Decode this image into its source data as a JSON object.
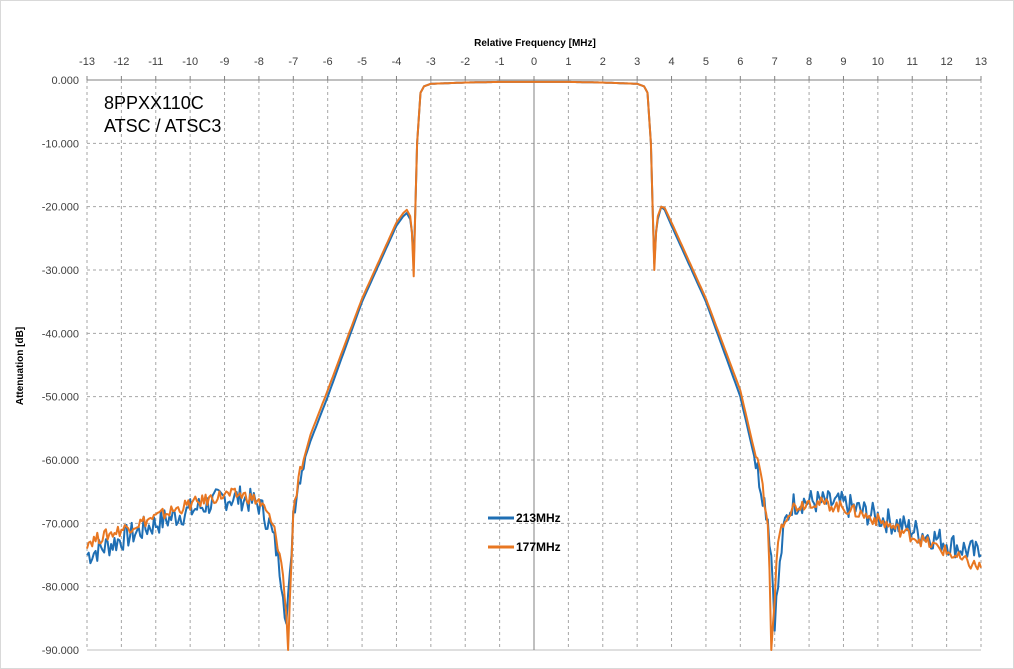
{
  "chart_data": {
    "type": "line",
    "title": "",
    "xlabel": "Relative Frequency [MHz]",
    "ylabel": "Attenuation [dB]",
    "xlim": [
      -13,
      13
    ],
    "ylim": [
      -90,
      0
    ],
    "x_ticks": [
      "-13",
      "-12",
      "-11",
      "-10",
      "-9",
      "-8",
      "-7",
      "-6",
      "-5",
      "-4",
      "-3",
      "-2",
      "-1",
      "0",
      "1",
      "2",
      "3",
      "4",
      "5",
      "6",
      "7",
      "8",
      "9",
      "10",
      "11",
      "12",
      "13"
    ],
    "y_ticks": [
      "0.000",
      "-10.000",
      "-20.000",
      "-30.000",
      "-40.000",
      "-50.000",
      "-60.000",
      "-70.000",
      "-80.000",
      "-90.000"
    ],
    "x_axis_position": "top",
    "grid": true,
    "legend_position": "center-bottom",
    "annotations": [
      "8PPXX110C",
      "ATSC / ATSC3"
    ],
    "series": [
      {
        "name": "213MHz",
        "color": "#1f6fb4",
        "x": [
          -13,
          -12,
          -11,
          -10,
          -9,
          -8.5,
          -8,
          -7.7,
          -7.5,
          -7.3,
          -7.2,
          -7.1,
          -7,
          -6.8,
          -6.5,
          -6,
          -5,
          -4,
          -3.8,
          -3.7,
          -3.6,
          -3.55,
          -3.5,
          -3.45,
          -3.4,
          -3.3,
          -3.2,
          -3,
          -2,
          -1,
          0,
          1,
          2,
          3,
          3.2,
          3.3,
          3.4,
          3.45,
          3.5,
          3.55,
          3.6,
          3.7,
          3.8,
          4,
          5,
          6,
          6.3,
          6.6,
          6.8,
          6.9,
          7,
          7.1,
          7.2,
          7.3,
          7.5,
          7.8,
          8,
          9,
          10,
          11,
          12,
          12.5,
          13
        ],
        "y": [
          -75,
          -72.5,
          -70,
          -68,
          -66,
          -66,
          -67,
          -70,
          -74,
          -80,
          -86,
          -79,
          -68,
          -62,
          -57,
          -50,
          -35,
          -23,
          -21.5,
          -21,
          -22,
          -24,
          -29,
          -20,
          -10,
          -2,
          -1,
          -0.6,
          -0.4,
          -0.3,
          -0.3,
          -0.3,
          -0.4,
          -0.6,
          -1,
          -2,
          -10,
          -20,
          -29,
          -24,
          -22,
          -20,
          -20.5,
          -23,
          -35,
          -50,
          -57,
          -64,
          -69,
          -75,
          -85,
          -80,
          -74,
          -70,
          -67,
          -66.5,
          -66.5,
          -67,
          -69,
          -71,
          -73,
          -74,
          -75
        ]
      },
      {
        "name": "177MHz",
        "color": "#e87722",
        "x": [
          -13,
          -12,
          -11,
          -10,
          -9,
          -8.5,
          -8,
          -7.7,
          -7.5,
          -7.3,
          -7.2,
          -7.15,
          -7.1,
          -7,
          -6.8,
          -6.5,
          -6,
          -5,
          -4,
          -3.8,
          -3.7,
          -3.6,
          -3.55,
          -3.5,
          -3.45,
          -3.4,
          -3.3,
          -3.2,
          -3,
          -2,
          -1,
          0,
          1,
          2,
          3,
          3.2,
          3.3,
          3.4,
          3.45,
          3.5,
          3.55,
          3.6,
          3.7,
          3.8,
          4,
          5,
          6,
          6.3,
          6.6,
          6.8,
          6.85,
          6.9,
          7,
          7.1,
          7.3,
          7.5,
          7.8,
          8,
          9,
          10,
          11,
          12,
          12.5,
          13
        ],
        "y": [
          -73,
          -71,
          -69,
          -67,
          -65.5,
          -65.5,
          -66.5,
          -69,
          -72,
          -78,
          -85,
          -90,
          -82,
          -68,
          -62,
          -56,
          -49,
          -34.5,
          -22.5,
          -21,
          -20.5,
          -21.5,
          -24,
          -31,
          -20,
          -10,
          -2,
          -1,
          -0.6,
          -0.4,
          -0.3,
          -0.3,
          -0.3,
          -0.4,
          -0.6,
          -1,
          -2,
          -10,
          -20,
          -30,
          -24,
          -21.5,
          -20,
          -20.2,
          -22.5,
          -34.5,
          -49,
          -56,
          -63,
          -70,
          -78,
          -90,
          -82,
          -72,
          -69,
          -67.5,
          -67,
          -66.5,
          -67.5,
          -69.5,
          -72,
          -74.5,
          -76,
          -77
        ]
      }
    ]
  }
}
